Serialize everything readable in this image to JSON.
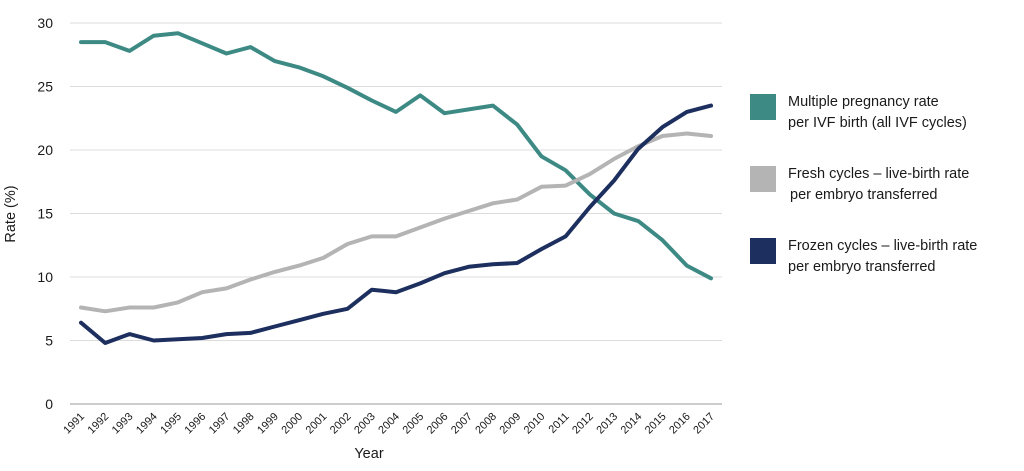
{
  "chart_data": {
    "type": "line",
    "title": "",
    "xlabel": "Year",
    "ylabel": "Rate (%)",
    "ylim": [
      0,
      30
    ],
    "yticks": [
      "0",
      "5",
      "10",
      "15",
      "20",
      "25",
      "30"
    ],
    "x": [
      "1991",
      "1992",
      "1993",
      "1994",
      "1995",
      "1996",
      "1997",
      "1998",
      "1999",
      "2000",
      "2001",
      "2002",
      "2003",
      "2004",
      "2005",
      "2006",
      "2007",
      "2008",
      "2009",
      "2010",
      "2011",
      "2012",
      "2013",
      "2014",
      "2015",
      "2016",
      "2017"
    ],
    "grid": "horizontal",
    "legend_position": "right",
    "series": [
      {
        "name": "Multiple pregnancy rate per IVF birth (all IVF cycles)",
        "name_lines": [
          "Multiple pregnancy rate",
          "per IVF birth (all IVF cycles)"
        ],
        "color": "#3d8a85",
        "values": [
          28.5,
          28.5,
          27.8,
          29.0,
          29.2,
          28.4,
          27.6,
          28.1,
          27.0,
          26.5,
          25.8,
          24.9,
          23.9,
          23.0,
          24.3,
          22.9,
          23.2,
          23.5,
          22.0,
          19.5,
          18.4,
          16.5,
          15.0,
          14.4,
          12.9,
          10.9,
          9.9
        ]
      },
      {
        "name": "Fresh cycles – live-birth rate per embryo transferred",
        "name_lines": [
          "Fresh cycles – live-birth rate",
          "per embryo transferred"
        ],
        "color": "#b4b4b4",
        "values": [
          7.6,
          7.3,
          7.6,
          7.6,
          8.0,
          8.8,
          9.1,
          9.8,
          10.4,
          10.9,
          11.5,
          12.6,
          13.2,
          13.2,
          13.9,
          14.6,
          15.2,
          15.8,
          16.1,
          17.1,
          17.2,
          18.1,
          19.3,
          20.3,
          21.1,
          21.3,
          21.1
        ]
      },
      {
        "name": "Frozen cycles – live-birth rate per embryo transferred",
        "name_lines": [
          "Frozen cycles – live-birth rate",
          "per embryo transferred"
        ],
        "color": "#1d2f5e",
        "values": [
          6.4,
          4.8,
          5.5,
          5.0,
          5.1,
          5.2,
          5.5,
          5.6,
          6.1,
          6.6,
          7.1,
          7.5,
          9.0,
          8.8,
          9.5,
          10.3,
          10.8,
          11.0,
          11.1,
          12.2,
          13.2,
          15.5,
          17.6,
          20.1,
          21.8,
          23.0,
          23.5
        ]
      }
    ]
  }
}
